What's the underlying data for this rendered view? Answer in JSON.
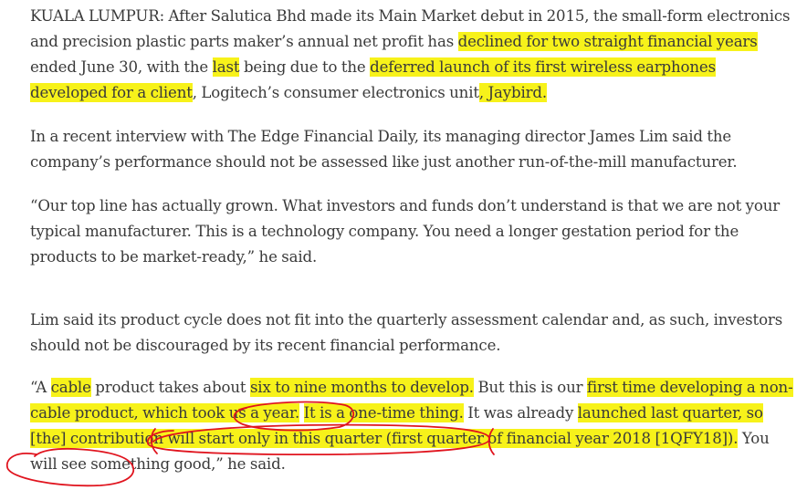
{
  "article": {
    "p1": {
      "s1": "KUALA LUMPUR: After Salutica Bhd made its Main Market debut in 2015, the small-form electronics and precision plastic parts maker’s annual net profit has ",
      "h1": "declined for two straight financial years",
      "s2": " ended June 30, with the ",
      "h2": "last",
      "s3": " being due to the ",
      "h3": "deferred launch of its first wireless earphones developed for a client",
      "s4": ", Logitech’s consumer electronics unit",
      "h4": ", Jaybird."
    },
    "p2": "In a recent interview with The Edge Financial Daily, its managing director James Lim said the company’s performance should not be assessed like just another run-of-the-mill manufacturer.",
    "p3": "“Our top line has actually grown. What investors and funds don’t understand is that we are not your typical manufacturer. This is a technology company. You need a longer gestation period for the products to be market-ready,” he said.",
    "p4": "Lim said its product cycle does not fit into the quarterly assessment calendar and, as such, investors should not be discouraged by its recent financial performance.",
    "p5": {
      "s1": "“A ",
      "h1": "cable",
      "s2": " product takes about ",
      "h2": "six to nine months to develop.",
      "s3": " But this is our ",
      "h3": "first time developing a non-cable product, which took us a year.",
      "s4": " ",
      "h4": "It is a one-time thing.",
      "s5": " It was already ",
      "h5": "launched last quarter, so [the] contribution will start only in this quarter (first quarter of financial year 2018 [1QFY18]).",
      "s6": " You will see something good,” he said."
    }
  },
  "colors": {
    "highlight": "#f7f21a",
    "pen": "#e0141e",
    "text": "#3a3a3a"
  }
}
